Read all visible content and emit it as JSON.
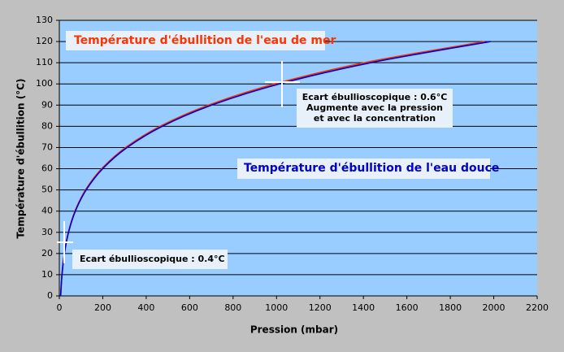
{
  "chart_data": {
    "type": "line",
    "x_label": "Pression (mbar)",
    "y_label": "Température d'ébullition (°C)",
    "xlim": [
      0,
      2200
    ],
    "xticks": [
      0,
      200,
      400,
      600,
      800,
      1000,
      1200,
      1400,
      1600,
      1800,
      2000,
      2200
    ],
    "ylim": [
      0,
      130
    ],
    "yticks": [
      0,
      10,
      20,
      30,
      40,
      50,
      60,
      70,
      80,
      90,
      100,
      110,
      120,
      130
    ],
    "grid": true,
    "series": [
      {
        "name": "Température d'ébullition de l'eau de mer",
        "color": "#ff3300",
        "x": [
          6.1,
          12.3,
          23.4,
          42.5,
          73.8,
          123.5,
          199.4,
          311.8,
          473.6,
          701.1,
          1013,
          1433,
          1960
        ],
        "values": [
          0.4,
          10.4,
          20.4,
          30.45,
          40.45,
          50.5,
          60.5,
          70.5,
          80.55,
          90.55,
          100.6,
          110.6,
          120
        ]
      },
      {
        "name": "Température d'ébullition de l'eau douce",
        "color": "#0000cc",
        "x": [
          6.1,
          12.3,
          23.4,
          42.5,
          73.8,
          123.5,
          199.4,
          311.8,
          473.6,
          701.1,
          1013,
          1433,
          1985
        ],
        "values": [
          0,
          10,
          20,
          30,
          40,
          50,
          60,
          70,
          80,
          90,
          100,
          110,
          120
        ]
      }
    ],
    "annotations": [
      "Ecart ébullioscopique : 0.6°C",
      "Augmente avec la pression",
      "et avec la concentration",
      "Ecart ébullioscopique : 0.4°C"
    ]
  }
}
